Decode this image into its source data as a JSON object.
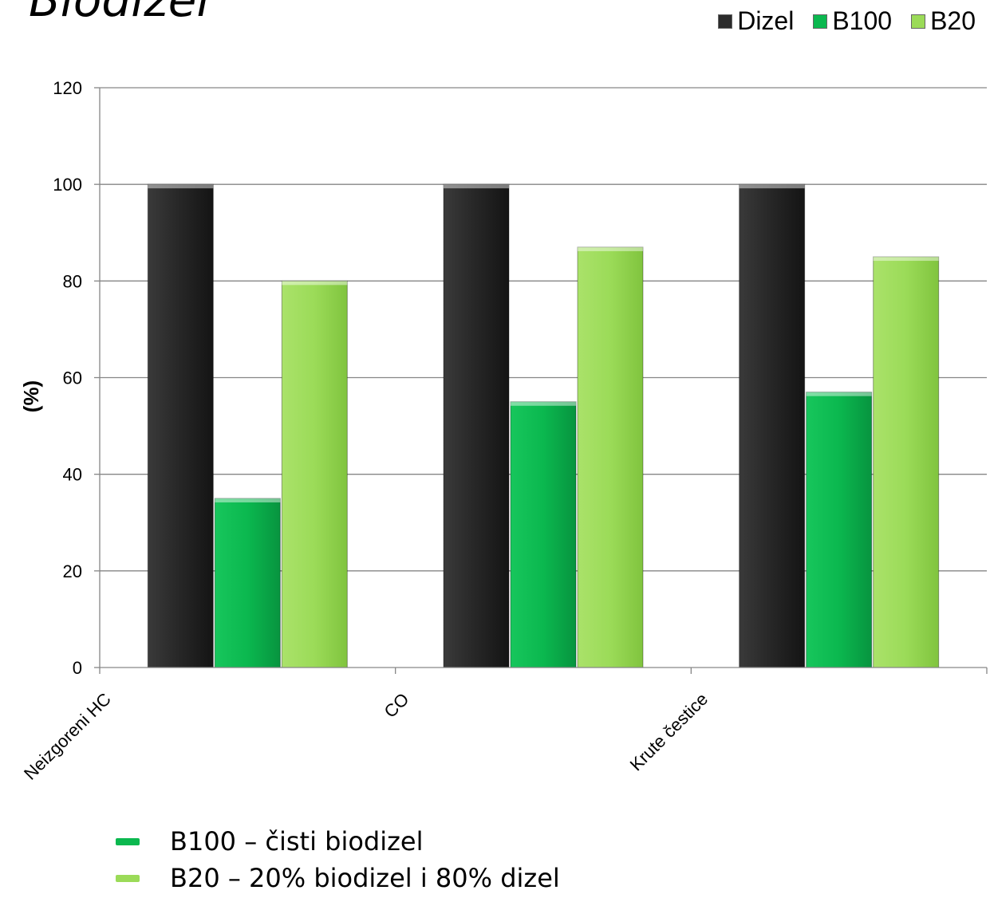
{
  "page": {
    "title": "Biodizel"
  },
  "colors": {
    "Dizel": "#2b2b2b",
    "B100": "#0bb84f",
    "B20": "#9bdb58"
  },
  "notes": [
    {
      "label": "B100 – čisti biodizel",
      "color": "#0bb84f"
    },
    {
      "label": "B20 – 20% biodizel i 80% dizel",
      "color": "#9bdb58"
    }
  ],
  "chart_data": {
    "type": "bar",
    "categories": [
      "Neizgoreni HC",
      "CO",
      "Krute čestice"
    ],
    "series": [
      {
        "name": "Dizel",
        "values": [
          100,
          100,
          100
        ]
      },
      {
        "name": "B100",
        "values": [
          35,
          55,
          57
        ]
      },
      {
        "name": "B20",
        "values": [
          80,
          87,
          85
        ]
      }
    ],
    "ylabel": "(%)",
    "ylim": [
      0,
      120
    ],
    "yticks": [
      "0",
      "20",
      "40",
      "60",
      "80",
      "100",
      "120"
    ],
    "grid": true,
    "legend_position": "top-right"
  }
}
